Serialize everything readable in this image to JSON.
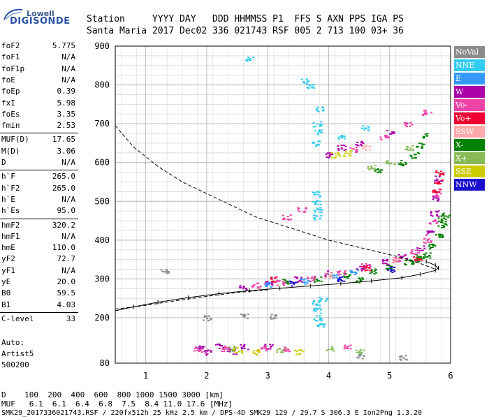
{
  "logo": {
    "line1": "Lowell",
    "line2": "DIGISONDE"
  },
  "header": {
    "line1": "Station     YYYY DAY   DDD HHMMSS P1  FFS S AXN PPS IGA PS",
    "line2": "Santa Maria 2017 Dec02 336 021743 RSF 005 2 713 100 03+ 36"
  },
  "params": [
    {
      "k": "foF2",
      "v": "5.775"
    },
    {
      "k": "foF1",
      "v": "N/A"
    },
    {
      "k": "foF1p",
      "v": "N/A"
    },
    {
      "k": "foE",
      "v": "N/A"
    },
    {
      "k": "foEp",
      "v": "0.39"
    },
    {
      "k": "fxI",
      "v": "5.98"
    },
    {
      "k": "foEs",
      "v": "3.35"
    },
    {
      "k": "fmin",
      "v": "2.53"
    },
    {
      "k": "MUF(D)",
      "v": "17.65"
    },
    {
      "k": "M(D)",
      "v": "3.06"
    },
    {
      "k": "D",
      "v": "N/A"
    },
    {
      "k": "h`F",
      "v": "265.0"
    },
    {
      "k": "h`F2",
      "v": "265.0"
    },
    {
      "k": "h`E",
      "v": "N/A"
    },
    {
      "k": "h`Es",
      "v": "95.0"
    },
    {
      "k": "hmF2",
      "v": "320.2"
    },
    {
      "k": "hmF1",
      "v": "N/A"
    },
    {
      "k": "hmE",
      "v": "110.0"
    },
    {
      "k": "yF2",
      "v": "72.7"
    },
    {
      "k": "yF1",
      "v": "N/A"
    },
    {
      "k": "yE",
      "v": "20.0"
    },
    {
      "k": "B0",
      "v": "59.5"
    },
    {
      "k": "B1",
      "v": "4.03"
    },
    {
      "k": "C-level",
      "v": "33"
    }
  ],
  "autoscaling": {
    "line1": "Auto:",
    "line2": "Artist5",
    "line3": "500200"
  },
  "footer": {
    "distance_line": "D    100  200  400  600  800 1000 1500 3000 [km]",
    "muf_line": "MUF   6.1  6.1  6.4  6.8  7.5  8.4 11.0 17.6 [MHz]",
    "file_line": "SMK29_2017336021743.RSF / 220fx512h 25 kHz 2.5 km / DPS-4D SMK29 129 / 29.7 S 306.3 E Ion2Png 1.3.20"
  },
  "legend": [
    {
      "label": "NoVal",
      "color": "#8c8c8c"
    },
    {
      "label": "NNE",
      "color": "#33ccee"
    },
    {
      "label": "E",
      "color": "#3399ff"
    },
    {
      "label": "W",
      "color": "#aa00aa"
    },
    {
      "label": "Vo-",
      "color": "#ee44aa"
    },
    {
      "label": "Vo+",
      "color": "#ee0033"
    },
    {
      "label": "SSW",
      "color": "#ffaaaa"
    },
    {
      "label": "X-",
      "color": "#008000"
    },
    {
      "label": "X+",
      "color": "#88bb55"
    },
    {
      "label": "SSE",
      "color": "#cccc00"
    },
    {
      "label": "NNW",
      "color": "#1a10cc"
    }
  ],
  "chart_data": {
    "type": "scatter",
    "xlabel": "",
    "ylabel": "",
    "xlim": [
      0.5,
      6.0
    ],
    "ylim": [
      80,
      900
    ],
    "x_ticks": [
      1,
      2,
      3,
      4,
      5,
      6
    ],
    "y_ticks": [
      80,
      200,
      300,
      400,
      500,
      600,
      700,
      800,
      900
    ],
    "grid": true,
    "legend_position": "right",
    "series": [
      {
        "name": "X-",
        "color": "#008000",
        "points": [
          [
            3.3,
            295
          ],
          [
            3.8,
            300
          ],
          [
            4.3,
            310
          ],
          [
            4.7,
            320
          ],
          [
            5.0,
            330
          ],
          [
            5.3,
            345
          ],
          [
            5.5,
            360
          ],
          [
            5.7,
            385
          ],
          [
            5.8,
            410
          ],
          [
            5.85,
            440
          ],
          [
            5.9,
            465
          ],
          [
            5.85,
            455
          ],
          [
            5.6,
            362
          ],
          [
            5.4,
            345
          ],
          [
            4.5,
            298
          ],
          [
            5.2,
            600
          ],
          [
            5.4,
            620
          ],
          [
            5.5,
            645
          ],
          [
            5.6,
            670
          ],
          [
            4.8,
            580
          ]
        ]
      },
      {
        "name": "W",
        "color": "#aa00aa",
        "points": [
          [
            2.6,
            280
          ],
          [
            3.0,
            290
          ],
          [
            3.5,
            300
          ],
          [
            4.0,
            315
          ],
          [
            4.5,
            330
          ],
          [
            4.9,
            345
          ],
          [
            5.2,
            360
          ],
          [
            5.5,
            380
          ],
          [
            5.65,
            420
          ],
          [
            5.72,
            470
          ],
          [
            5.75,
            510
          ],
          [
            5.78,
            560
          ],
          [
            4.0,
            620
          ],
          [
            4.5,
            650
          ],
          [
            5.0,
            680
          ],
          [
            4.2,
            640
          ],
          [
            1.9,
            125
          ],
          [
            2.2,
            125
          ],
          [
            2.6,
            125
          ],
          [
            3.0,
            125
          ],
          [
            2.0,
            110
          ],
          [
            2.4,
            112
          ]
        ]
      },
      {
        "name": "Vo-",
        "color": "#ee44aa",
        "points": [
          [
            2.8,
            285
          ],
          [
            3.2,
            292
          ],
          [
            3.7,
            302
          ],
          [
            4.2,
            318
          ],
          [
            4.6,
            335
          ],
          [
            5.1,
            352
          ],
          [
            5.4,
            372
          ],
          [
            5.6,
            400
          ],
          [
            5.7,
            450
          ],
          [
            5.76,
            520
          ],
          [
            4.4,
            635
          ],
          [
            4.9,
            665
          ],
          [
            5.3,
            700
          ],
          [
            5.6,
            730
          ],
          [
            3.3,
            460
          ],
          [
            3.55,
            480
          ],
          [
            1.85,
            118
          ],
          [
            2.3,
            120
          ],
          [
            2.9,
            122
          ],
          [
            3.3,
            118
          ],
          [
            4.3,
            122
          ]
        ]
      },
      {
        "name": "Vo+",
        "color": "#ee0033",
        "points": [
          [
            5.75,
            530
          ],
          [
            5.78,
            550
          ],
          [
            5.8,
            575
          ],
          [
            3.1,
            300
          ],
          [
            4.6,
            330
          ],
          [
            5.45,
            355
          ]
        ]
      },
      {
        "name": "NNE",
        "color": "#33ccee",
        "points": [
          [
            3.8,
            700
          ],
          [
            3.82,
            680
          ],
          [
            3.85,
            740
          ],
          [
            3.78,
            650
          ],
          [
            3.8,
            500
          ],
          [
            3.82,
            480
          ],
          [
            3.78,
            520
          ],
          [
            3.8,
            460
          ],
          [
            3.8,
            220
          ],
          [
            3.82,
            200
          ],
          [
            3.78,
            240
          ],
          [
            3.85,
            180
          ],
          [
            3.7,
            800
          ],
          [
            3.6,
            810
          ],
          [
            2.7,
            870
          ],
          [
            4.2,
            665
          ],
          [
            4.6,
            690
          ],
          [
            3.9,
            250
          ]
        ]
      },
      {
        "name": "X+",
        "color": "#88bb55",
        "points": [
          [
            5.0,
            600
          ],
          [
            5.3,
            640
          ],
          [
            4.7,
            590
          ],
          [
            2.4,
            120
          ],
          [
            3.2,
            115
          ],
          [
            4.0,
            118
          ],
          [
            4.5,
            112
          ]
        ]
      },
      {
        "name": "SSE",
        "color": "#cccc00",
        "points": [
          [
            4.1,
            620
          ],
          [
            4.3,
            625
          ],
          [
            2.5,
            115
          ],
          [
            2.8,
            110
          ],
          [
            3.5,
            112
          ]
        ]
      },
      {
        "name": "E",
        "color": "#3399ff",
        "points": [
          [
            3.0,
            285
          ],
          [
            3.6,
            295
          ],
          [
            4.1,
            305
          ],
          [
            4.4,
            320
          ]
        ]
      },
      {
        "name": "NNW",
        "color": "#1a10cc",
        "points": [
          [
            3.4,
            290
          ],
          [
            4.2,
            300
          ],
          [
            5.0,
            325
          ]
        ]
      },
      {
        "name": "SSW",
        "color": "#ffaaaa",
        "points": [
          [
            4.0,
            310
          ],
          [
            5.1,
            350
          ],
          [
            4.6,
            640
          ]
        ]
      },
      {
        "name": "NoVal",
        "color": "#8c8c8c",
        "points": [
          [
            4.5,
            100
          ],
          [
            5.2,
            95
          ],
          [
            2.0,
            200
          ],
          [
            2.6,
            205
          ],
          [
            3.1,
            205
          ],
          [
            1.3,
            320
          ]
        ]
      }
    ],
    "profile_curve": {
      "style": "solid-with-ticks",
      "points": [
        [
          0.5,
          218
        ],
        [
          0.8,
          228
        ],
        [
          1.2,
          240
        ],
        [
          1.7,
          252
        ],
        [
          2.2,
          262
        ],
        [
          2.7,
          270
        ],
        [
          3.2,
          276
        ],
        [
          3.7,
          282
        ],
        [
          4.2,
          288
        ],
        [
          4.7,
          295
        ],
        [
          5.2,
          303
        ],
        [
          5.5,
          312
        ],
        [
          5.75,
          322
        ],
        [
          5.8,
          328
        ],
        [
          5.75,
          335
        ],
        [
          5.6,
          345
        ]
      ]
    },
    "dashed_curve": {
      "points": [
        [
          0.5,
          695
        ],
        [
          0.8,
          640
        ],
        [
          1.2,
          590
        ],
        [
          1.6,
          550
        ],
        [
          2.0,
          520
        ],
        [
          2.4,
          490
        ],
        [
          2.8,
          460
        ],
        [
          3.2,
          440
        ],
        [
          3.6,
          420
        ],
        [
          4.0,
          400
        ],
        [
          4.4,
          385
        ],
        [
          4.8,
          370
        ],
        [
          5.2,
          355
        ],
        [
          5.5,
          340
        ],
        [
          5.75,
          325
        ]
      ]
    },
    "dashed_lower_curve": {
      "points": [
        [
          0.5,
          222
        ],
        [
          1.0,
          232
        ],
        [
          1.5,
          244
        ],
        [
          2.0,
          255
        ],
        [
          2.5,
          265
        ],
        [
          3.0,
          272
        ]
      ]
    }
  }
}
